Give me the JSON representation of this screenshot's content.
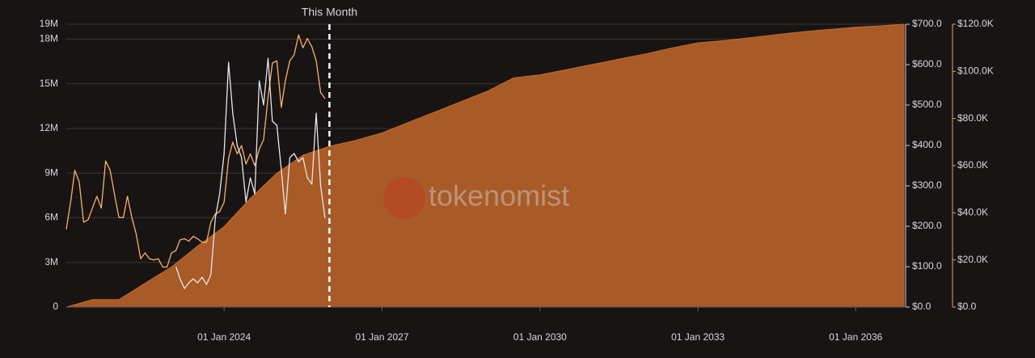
{
  "chart_data": {
    "type": "area",
    "watermark": "tokenomist",
    "annotations": [
      {
        "x": "2026-01-01",
        "text": "This Month"
      }
    ],
    "xlim": [
      "2021-01-01",
      "2036-12-01"
    ],
    "xticks": [
      {
        "value": "2024-01-01",
        "label": "01 Jan 2024"
      },
      {
        "value": "2027-01-01",
        "label": "01 Jan 2027"
      },
      {
        "value": "2030-01-01",
        "label": "01 Jan 2030"
      },
      {
        "value": "2033-01-01",
        "label": "01 Jan 2033"
      },
      {
        "value": "2036-01-01",
        "label": "01 Jan 2036"
      }
    ],
    "ylim": [
      0,
      19000000
    ],
    "yticks": [
      0,
      {
        "value": 3000000,
        "label": "3M"
      },
      {
        "value": 6000000,
        "label": "6M"
      },
      {
        "value": 9000000,
        "label": "9M"
      },
      {
        "value": 12000000,
        "label": "12M"
      },
      {
        "value": 15000000,
        "label": "15M"
      },
      {
        "value": 18000000,
        "label": "18M"
      },
      {
        "value": 19000000,
        "label": "19M"
      }
    ],
    "y2lim": [
      0,
      700
    ],
    "y2ticks": [
      {
        "value": 0,
        "label": "$0.0"
      },
      {
        "value": 100,
        "label": "$100.0"
      },
      {
        "value": 200,
        "label": "$200.0"
      },
      {
        "value": 300,
        "label": "$300.0"
      },
      {
        "value": 400,
        "label": "$400.0"
      },
      {
        "value": 500,
        "label": "$500.0"
      },
      {
        "value": 600,
        "label": "$600.0"
      },
      {
        "value": 700,
        "label": "$700.0"
      }
    ],
    "y3lim": [
      0,
      120000
    ],
    "y3ticks": [
      {
        "value": 0,
        "label": "$0.0"
      },
      {
        "value": 20000,
        "label": "$20.0K"
      },
      {
        "value": 40000,
        "label": "$40.0K"
      },
      {
        "value": 60000,
        "label": "$60.0K"
      },
      {
        "value": 80000,
        "label": "$80.0K"
      },
      {
        "value": 100000,
        "label": "$100.0K"
      },
      {
        "value": 120000,
        "label": "$120.0K"
      }
    ],
    "grid": true,
    "series": [
      {
        "type": "area",
        "axis": "y",
        "color": "#a85b27",
        "x": [
          "2021-01-01",
          "2021-07-01",
          "2022-01-01",
          "2022-07-01",
          "2023-01-01",
          "2023-07-01",
          "2024-01-01",
          "2024-07-01",
          "2025-01-01",
          "2025-07-01",
          "2026-01-01",
          "2026-07-01",
          "2027-01-01",
          "2027-07-01",
          "2028-01-01",
          "2028-07-01",
          "2029-01-01",
          "2029-07-01",
          "2030-01-01",
          "2030-07-01",
          "2031-01-01",
          "2031-07-01",
          "2032-01-01",
          "2032-07-01",
          "2033-01-01",
          "2033-07-01",
          "2034-01-01",
          "2034-07-01",
          "2035-01-01",
          "2035-07-01",
          "2036-01-01",
          "2036-07-01",
          "2036-12-01"
        ],
        "values": [
          0,
          500000,
          500000,
          1600000,
          2700000,
          4100000,
          5400000,
          7300000,
          9000000,
          10200000,
          10800000,
          11200000,
          11700000,
          12400000,
          13100000,
          13800000,
          14500000,
          15400000,
          15600000,
          15950000,
          16300000,
          16650000,
          17000000,
          17400000,
          17750000,
          17900000,
          18100000,
          18300000,
          18500000,
          18650000,
          18800000,
          18900000,
          19000000
        ]
      },
      {
        "type": "line",
        "axis": "y3",
        "color": "#f4b26a",
        "x": [
          "2021-01-01",
          "2021-02-01",
          "2021-03-01",
          "2021-04-01",
          "2021-05-01",
          "2021-06-01",
          "2021-07-01",
          "2021-08-01",
          "2021-09-01",
          "2021-10-01",
          "2021-11-01",
          "2021-12-01",
          "2022-01-01",
          "2022-02-01",
          "2022-03-01",
          "2022-04-01",
          "2022-05-01",
          "2022-06-01",
          "2022-07-01",
          "2022-08-01",
          "2022-09-01",
          "2022-10-01",
          "2022-11-01",
          "2022-12-01",
          "2023-01-01",
          "2023-02-01",
          "2023-03-01",
          "2023-04-01",
          "2023-05-01",
          "2023-06-01",
          "2023-07-01",
          "2023-08-01",
          "2023-09-01",
          "2023-10-01",
          "2023-11-01",
          "2023-12-01",
          "2024-01-01",
          "2024-02-01",
          "2024-03-01",
          "2024-04-01",
          "2024-05-01",
          "2024-06-01",
          "2024-07-01",
          "2024-08-01",
          "2024-09-01",
          "2024-10-01",
          "2024-11-01",
          "2024-12-01",
          "2025-01-01",
          "2025-02-01",
          "2025-03-01",
          "2025-04-01",
          "2025-05-01",
          "2025-06-01",
          "2025-07-01",
          "2025-08-01",
          "2025-09-01",
          "2025-10-01",
          "2025-11-01",
          "2025-12-01"
        ],
        "values": [
          33000,
          45000,
          58000,
          53000,
          36000,
          37000,
          42000,
          47000,
          42000,
          62000,
          58000,
          48000,
          38000,
          38000,
          47000,
          38000,
          31000,
          20500,
          23000,
          20500,
          20000,
          20500,
          17000,
          17000,
          23000,
          24000,
          28500,
          29000,
          28000,
          30000,
          29000,
          27500,
          27500,
          36000,
          39500,
          40500,
          44500,
          63000,
          70000,
          65000,
          68500,
          60700,
          65000,
          60000,
          67000,
          71000,
          89000,
          103500,
          104500,
          84700,
          96000,
          104500,
          107000,
          115500,
          110000,
          114000,
          110400,
          104500,
          91000,
          88500
        ]
      },
      {
        "type": "line",
        "axis": "y2",
        "color": "#e6e6e6",
        "x": [
          "2023-02-01",
          "2023-03-01",
          "2023-04-01",
          "2023-05-01",
          "2023-06-01",
          "2023-07-01",
          "2023-08-01",
          "2023-09-01",
          "2023-10-01",
          "2023-11-01",
          "2023-12-01",
          "2024-01-01",
          "2024-02-01",
          "2024-03-01",
          "2024-04-01",
          "2024-05-01",
          "2024-06-01",
          "2024-07-01",
          "2024-08-01",
          "2024-09-01",
          "2024-10-01",
          "2024-11-01",
          "2024-12-01",
          "2025-01-01",
          "2025-02-01",
          "2025-03-01",
          "2025-04-01",
          "2025-05-01",
          "2025-06-01",
          "2025-07-01",
          "2025-08-01",
          "2025-09-01",
          "2025-10-01",
          "2025-11-01",
          "2025-12-01"
        ],
        "values": [
          100,
          70,
          46,
          60,
          70,
          60,
          74,
          56,
          80,
          220,
          280,
          380,
          606,
          480,
          400,
          370,
          260,
          320,
          280,
          560,
          500,
          616,
          460,
          450,
          340,
          230,
          370,
          380,
          360,
          370,
          320,
          304,
          480,
          300,
          220
        ]
      }
    ]
  }
}
